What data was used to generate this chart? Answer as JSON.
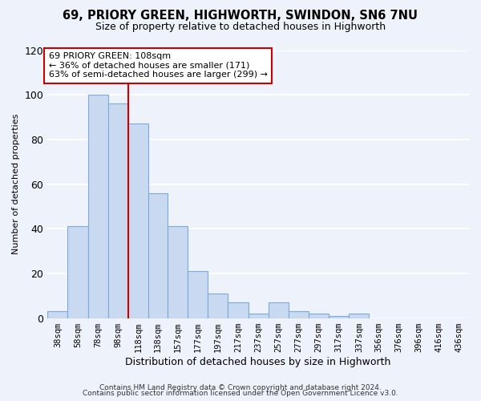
{
  "title": "69, PRIORY GREEN, HIGHWORTH, SWINDON, SN6 7NU",
  "subtitle": "Size of property relative to detached houses in Highworth",
  "xlabel": "Distribution of detached houses by size in Highworth",
  "ylabel": "Number of detached properties",
  "bar_labels": [
    "38sqm",
    "58sqm",
    "78sqm",
    "98sqm",
    "118sqm",
    "138sqm",
    "157sqm",
    "177sqm",
    "197sqm",
    "217sqm",
    "237sqm",
    "257sqm",
    "277sqm",
    "297sqm",
    "317sqm",
    "337sqm",
    "356sqm",
    "376sqm",
    "396sqm",
    "416sqm",
    "436sqm"
  ],
  "bar_values": [
    3,
    41,
    100,
    96,
    87,
    56,
    41,
    21,
    11,
    7,
    2,
    7,
    3,
    2,
    1,
    2,
    0,
    0,
    0,
    0,
    0
  ],
  "bar_color": "#c9d9f0",
  "bar_edge_color": "#7aabdc",
  "ylim": [
    0,
    120
  ],
  "yticks": [
    0,
    20,
    40,
    60,
    80,
    100,
    120
  ],
  "property_line_x": 108,
  "property_line_color": "#cc0000",
  "annotation_title": "69 PRIORY GREEN: 108sqm",
  "annotation_line1": "← 36% of detached houses are smaller (171)",
  "annotation_line2": "63% of semi-detached houses are larger (299) →",
  "annotation_box_color": "#ffffff",
  "annotation_box_edge": "#cc0000",
  "footer1": "Contains HM Land Registry data © Crown copyright and database right 2024.",
  "footer2": "Contains public sector information licensed under the Open Government Licence v3.0.",
  "background_color": "#eef2fa",
  "grid_color": "#ffffff",
  "bin_edges": [
    28,
    48,
    68,
    88,
    108,
    128,
    147,
    167,
    187,
    207,
    227,
    247,
    267,
    287,
    307,
    327,
    347,
    366,
    386,
    406,
    426,
    446
  ]
}
